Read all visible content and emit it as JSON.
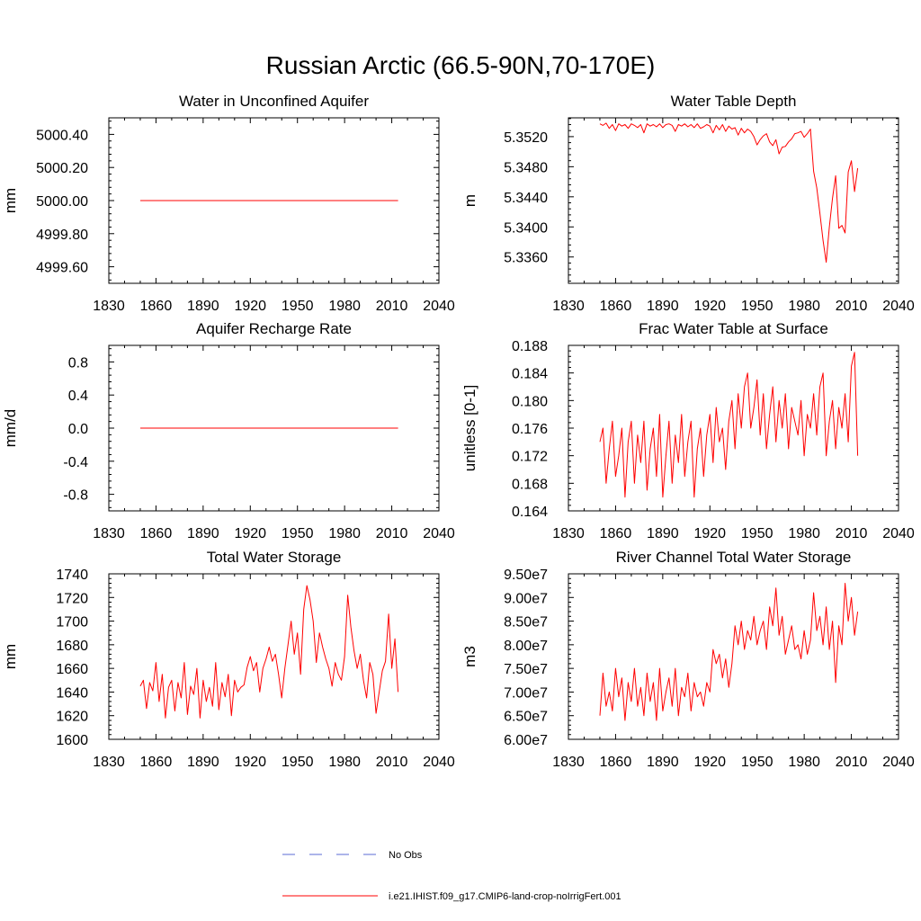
{
  "figure": {
    "title": "Russian Arctic (66.5-90N,70-170E)"
  },
  "legend": {
    "items": [
      {
        "label": "No Obs",
        "color": "#5b6bd6",
        "style": "dashed"
      },
      {
        "label": "i.e21.IHIST.f09_g17.CMIP6-land-crop-noIrrigFert.001",
        "color": "#ff0000",
        "style": "solid"
      }
    ]
  },
  "chart_data": [
    {
      "type": "line",
      "title": "Water in Unconfined Aquifer",
      "xlabel": "",
      "ylabel": "mm",
      "xlim": [
        1830,
        2040
      ],
      "ylim": [
        4999.5,
        5000.5
      ],
      "xticks": [
        1830,
        1860,
        1890,
        1920,
        1950,
        1980,
        2010,
        2040
      ],
      "yticks": [
        "4999.60",
        "4999.80",
        "5000.00",
        "5000.20",
        "5000.40"
      ],
      "ytick_values": [
        4999.6,
        4999.8,
        5000.0,
        5000.2,
        5000.4
      ],
      "series": [
        {
          "color": "#ff0000",
          "x": [
            1850,
            2014
          ],
          "y": [
            5000.0,
            5000.0
          ]
        }
      ]
    },
    {
      "type": "line",
      "title": "Water Table Depth",
      "xlabel": "",
      "ylabel": "m",
      "xlim": [
        1830,
        2040
      ],
      "ylim": [
        5.3325,
        5.3545
      ],
      "xticks": [
        1830,
        1860,
        1890,
        1920,
        1950,
        1980,
        2010,
        2040
      ],
      "yticks": [
        "5.3360",
        "5.3400",
        "5.3440",
        "5.3480",
        "5.3520"
      ],
      "ytick_values": [
        5.336,
        5.34,
        5.344,
        5.348,
        5.352
      ],
      "series": [
        {
          "color": "#ff0000",
          "x": [
            1850,
            1852,
            1854,
            1856,
            1858,
            1860,
            1862,
            1864,
            1866,
            1868,
            1870,
            1872,
            1874,
            1876,
            1878,
            1880,
            1882,
            1884,
            1886,
            1888,
            1890,
            1892,
            1894,
            1896,
            1898,
            1900,
            1902,
            1904,
            1906,
            1908,
            1910,
            1912,
            1914,
            1916,
            1918,
            1920,
            1922,
            1924,
            1926,
            1928,
            1930,
            1932,
            1934,
            1936,
            1938,
            1940,
            1942,
            1944,
            1946,
            1948,
            1950,
            1952,
            1954,
            1956,
            1958,
            1960,
            1962,
            1964,
            1966,
            1968,
            1970,
            1972,
            1974,
            1976,
            1978,
            1980,
            1982,
            1984,
            1986,
            1988,
            1990,
            1992,
            1994,
            1996,
            1998,
            2000,
            2002,
            2004,
            2006,
            2008,
            2010,
            2012,
            2014
          ],
          "y": [
            5.3537,
            5.3535,
            5.3538,
            5.3531,
            5.3536,
            5.3528,
            5.3537,
            5.3534,
            5.3536,
            5.3531,
            5.3537,
            5.3535,
            5.3532,
            5.3536,
            5.3525,
            5.3537,
            5.3534,
            5.3536,
            5.3533,
            5.3537,
            5.3532,
            5.3536,
            5.3537,
            5.3535,
            5.3527,
            5.3536,
            5.3534,
            5.3537,
            5.3533,
            5.3536,
            5.3532,
            5.3537,
            5.3531,
            5.3533,
            5.3536,
            5.3534,
            5.3525,
            5.3535,
            5.3529,
            5.3536,
            5.3527,
            5.3534,
            5.353,
            5.3532,
            5.3522,
            5.3531,
            5.3525,
            5.353,
            5.3527,
            5.352,
            5.3509,
            5.3516,
            5.3521,
            5.3524,
            5.3513,
            5.3508,
            5.3516,
            5.3497,
            5.3506,
            5.3507,
            5.3513,
            5.3517,
            5.3524,
            5.3525,
            5.3527,
            5.3519,
            5.3524,
            5.353,
            5.3474,
            5.3452,
            5.3418,
            5.3382,
            5.3353,
            5.34,
            5.3438,
            5.3468,
            5.3398,
            5.3402,
            5.3392,
            5.3473,
            5.3488,
            5.3447,
            5.3478
          ]
        }
      ]
    },
    {
      "type": "line",
      "title": "Aquifer Recharge Rate",
      "xlabel": "",
      "ylabel": "mm/d",
      "xlim": [
        1830,
        2040
      ],
      "ylim": [
        -1.0,
        1.0
      ],
      "xticks": [
        1830,
        1860,
        1890,
        1920,
        1950,
        1980,
        2010,
        2040
      ],
      "yticks": [
        "-0.8",
        "-0.4",
        "0.0",
        "0.4",
        "0.8"
      ],
      "ytick_values": [
        -0.8,
        -0.4,
        0.0,
        0.4,
        0.8
      ],
      "series": [
        {
          "color": "#ff0000",
          "x": [
            1850,
            2014
          ],
          "y": [
            0.0,
            0.0
          ]
        }
      ]
    },
    {
      "type": "line",
      "title": "Frac Water Table at Surface",
      "xlabel": "",
      "ylabel": "unitless [0-1]",
      "xlim": [
        1830,
        2040
      ],
      "ylim": [
        0.164,
        0.188
      ],
      "xticks": [
        1830,
        1860,
        1890,
        1920,
        1950,
        1980,
        2010,
        2040
      ],
      "yticks": [
        "0.164",
        "0.168",
        "0.172",
        "0.176",
        "0.180",
        "0.184",
        "0.188"
      ],
      "ytick_values": [
        0.164,
        0.168,
        0.172,
        0.176,
        0.18,
        0.184,
        0.188
      ],
      "series": [
        {
          "color": "#ff0000",
          "x": [
            1850,
            1852,
            1854,
            1856,
            1858,
            1860,
            1862,
            1864,
            1866,
            1868,
            1870,
            1872,
            1874,
            1876,
            1878,
            1880,
            1882,
            1884,
            1886,
            1888,
            1890,
            1892,
            1894,
            1896,
            1898,
            1900,
            1902,
            1904,
            1906,
            1908,
            1910,
            1912,
            1914,
            1916,
            1918,
            1920,
            1922,
            1924,
            1926,
            1928,
            1930,
            1932,
            1934,
            1936,
            1938,
            1940,
            1942,
            1944,
            1946,
            1948,
            1950,
            1952,
            1954,
            1956,
            1958,
            1960,
            1962,
            1964,
            1966,
            1968,
            1970,
            1972,
            1974,
            1976,
            1978,
            1980,
            1982,
            1984,
            1986,
            1988,
            1990,
            1992,
            1994,
            1996,
            1998,
            2000,
            2002,
            2004,
            2006,
            2008,
            2010,
            2012,
            2014
          ],
          "y": [
            0.174,
            0.176,
            0.168,
            0.173,
            0.177,
            0.169,
            0.172,
            0.176,
            0.166,
            0.174,
            0.177,
            0.168,
            0.175,
            0.171,
            0.177,
            0.167,
            0.173,
            0.176,
            0.169,
            0.178,
            0.166,
            0.172,
            0.177,
            0.168,
            0.175,
            0.171,
            0.178,
            0.169,
            0.174,
            0.177,
            0.166,
            0.173,
            0.176,
            0.169,
            0.175,
            0.178,
            0.171,
            0.179,
            0.174,
            0.176,
            0.17,
            0.177,
            0.18,
            0.173,
            0.181,
            0.176,
            0.182,
            0.184,
            0.176,
            0.179,
            0.183,
            0.175,
            0.181,
            0.173,
            0.178,
            0.182,
            0.174,
            0.18,
            0.176,
            0.181,
            0.173,
            0.179,
            0.177,
            0.175,
            0.18,
            0.172,
            0.178,
            0.176,
            0.181,
            0.175,
            0.182,
            0.184,
            0.172,
            0.177,
            0.18,
            0.173,
            0.179,
            0.176,
            0.181,
            0.174,
            0.185,
            0.187,
            0.172
          ]
        }
      ]
    },
    {
      "type": "line",
      "title": "Total Water Storage",
      "xlabel": "",
      "ylabel": "mm",
      "xlim": [
        1830,
        2040
      ],
      "ylim": [
        1600,
        1740
      ],
      "xticks": [
        1830,
        1860,
        1890,
        1920,
        1950,
        1980,
        2010,
        2040
      ],
      "yticks": [
        "1600",
        "1620",
        "1640",
        "1660",
        "1680",
        "1700",
        "1720",
        "1740"
      ],
      "ytick_values": [
        1600,
        1620,
        1640,
        1660,
        1680,
        1700,
        1720,
        1740
      ],
      "series": [
        {
          "color": "#ff0000",
          "x": [
            1850,
            1852,
            1854,
            1856,
            1858,
            1860,
            1862,
            1864,
            1866,
            1868,
            1870,
            1872,
            1874,
            1876,
            1878,
            1880,
            1882,
            1884,
            1886,
            1888,
            1890,
            1892,
            1894,
            1896,
            1898,
            1900,
            1902,
            1904,
            1906,
            1908,
            1910,
            1912,
            1914,
            1916,
            1918,
            1920,
            1922,
            1924,
            1926,
            1928,
            1930,
            1932,
            1934,
            1936,
            1938,
            1940,
            1942,
            1944,
            1946,
            1948,
            1950,
            1952,
            1954,
            1956,
            1958,
            1960,
            1962,
            1964,
            1966,
            1968,
            1970,
            1972,
            1974,
            1976,
            1978,
            1980,
            1982,
            1984,
            1986,
            1988,
            1990,
            1992,
            1994,
            1996,
            1998,
            2000,
            2002,
            2004,
            2006,
            2008,
            2010,
            2012,
            2014
          ],
          "y": [
            1645,
            1650,
            1626,
            1648,
            1641,
            1665,
            1632,
            1655,
            1618,
            1644,
            1650,
            1624,
            1648,
            1635,
            1665,
            1621,
            1645,
            1638,
            1660,
            1618,
            1650,
            1632,
            1644,
            1628,
            1665,
            1625,
            1648,
            1636,
            1655,
            1620,
            1650,
            1640,
            1644,
            1646,
            1661,
            1670,
            1658,
            1665,
            1640,
            1660,
            1668,
            1678,
            1666,
            1672,
            1655,
            1635,
            1660,
            1680,
            1700,
            1672,
            1690,
            1655,
            1710,
            1730,
            1718,
            1700,
            1665,
            1690,
            1678,
            1668,
            1660,
            1645,
            1665,
            1655,
            1650,
            1670,
            1722,
            1695,
            1675,
            1660,
            1672,
            1650,
            1635,
            1665,
            1655,
            1622,
            1640,
            1658,
            1666,
            1706,
            1660,
            1685,
            1640
          ]
        }
      ]
    },
    {
      "type": "line",
      "title": "River Channel Total Water Storage",
      "xlabel": "",
      "ylabel": "m3",
      "xlim": [
        1830,
        2040
      ],
      "ylim": [
        60000000.0,
        95000000.0
      ],
      "xticks": [
        1830,
        1860,
        1890,
        1920,
        1950,
        1980,
        2010,
        2040
      ],
      "yticks": [
        "6.00e7",
        "6.50e7",
        "7.00e7",
        "7.50e7",
        "8.00e7",
        "8.50e7",
        "9.00e7",
        "9.50e7"
      ],
      "ytick_values": [
        60000000,
        65000000,
        70000000,
        75000000,
        80000000,
        85000000,
        90000000,
        95000000
      ],
      "series": [
        {
          "color": "#ff0000",
          "x": [
            1850,
            1852,
            1854,
            1856,
            1858,
            1860,
            1862,
            1864,
            1866,
            1868,
            1870,
            1872,
            1874,
            1876,
            1878,
            1880,
            1882,
            1884,
            1886,
            1888,
            1890,
            1892,
            1894,
            1896,
            1898,
            1900,
            1902,
            1904,
            1906,
            1908,
            1910,
            1912,
            1914,
            1916,
            1918,
            1920,
            1922,
            1924,
            1926,
            1928,
            1930,
            1932,
            1934,
            1936,
            1938,
            1940,
            1942,
            1944,
            1946,
            1948,
            1950,
            1952,
            1954,
            1956,
            1958,
            1960,
            1962,
            1964,
            1966,
            1968,
            1970,
            1972,
            1974,
            1976,
            1978,
            1980,
            1982,
            1984,
            1986,
            1988,
            1990,
            1992,
            1994,
            1996,
            1998,
            2000,
            2002,
            2004,
            2006,
            2008,
            2010,
            2012,
            2014
          ],
          "y": [
            65000000,
            74000000,
            67000000,
            70000000,
            66000000,
            75000000,
            69000000,
            73000000,
            64000000,
            72000000,
            68000000,
            75000000,
            67000000,
            71000000,
            65000000,
            74000000,
            68000000,
            72000000,
            64000000,
            75000000,
            66000000,
            70000000,
            73000000,
            67000000,
            75000000,
            65000000,
            71000000,
            69000000,
            74000000,
            66000000,
            72000000,
            69000000,
            70000000,
            67000000,
            72000000,
            70000000,
            79000000,
            76000000,
            78000000,
            73000000,
            77000000,
            71000000,
            76000000,
            84000000,
            80000000,
            85000000,
            79000000,
            83000000,
            81000000,
            86000000,
            80000000,
            83000000,
            85000000,
            79000000,
            88000000,
            84000000,
            92000000,
            82000000,
            86000000,
            78000000,
            81000000,
            84000000,
            79000000,
            80000000,
            77000000,
            83000000,
            78000000,
            81000000,
            91000000,
            83000000,
            86000000,
            80000000,
            88000000,
            79000000,
            85000000,
            72000000,
            84000000,
            80000000,
            93000000,
            85000000,
            90000000,
            82000000,
            87000000
          ]
        }
      ]
    }
  ]
}
